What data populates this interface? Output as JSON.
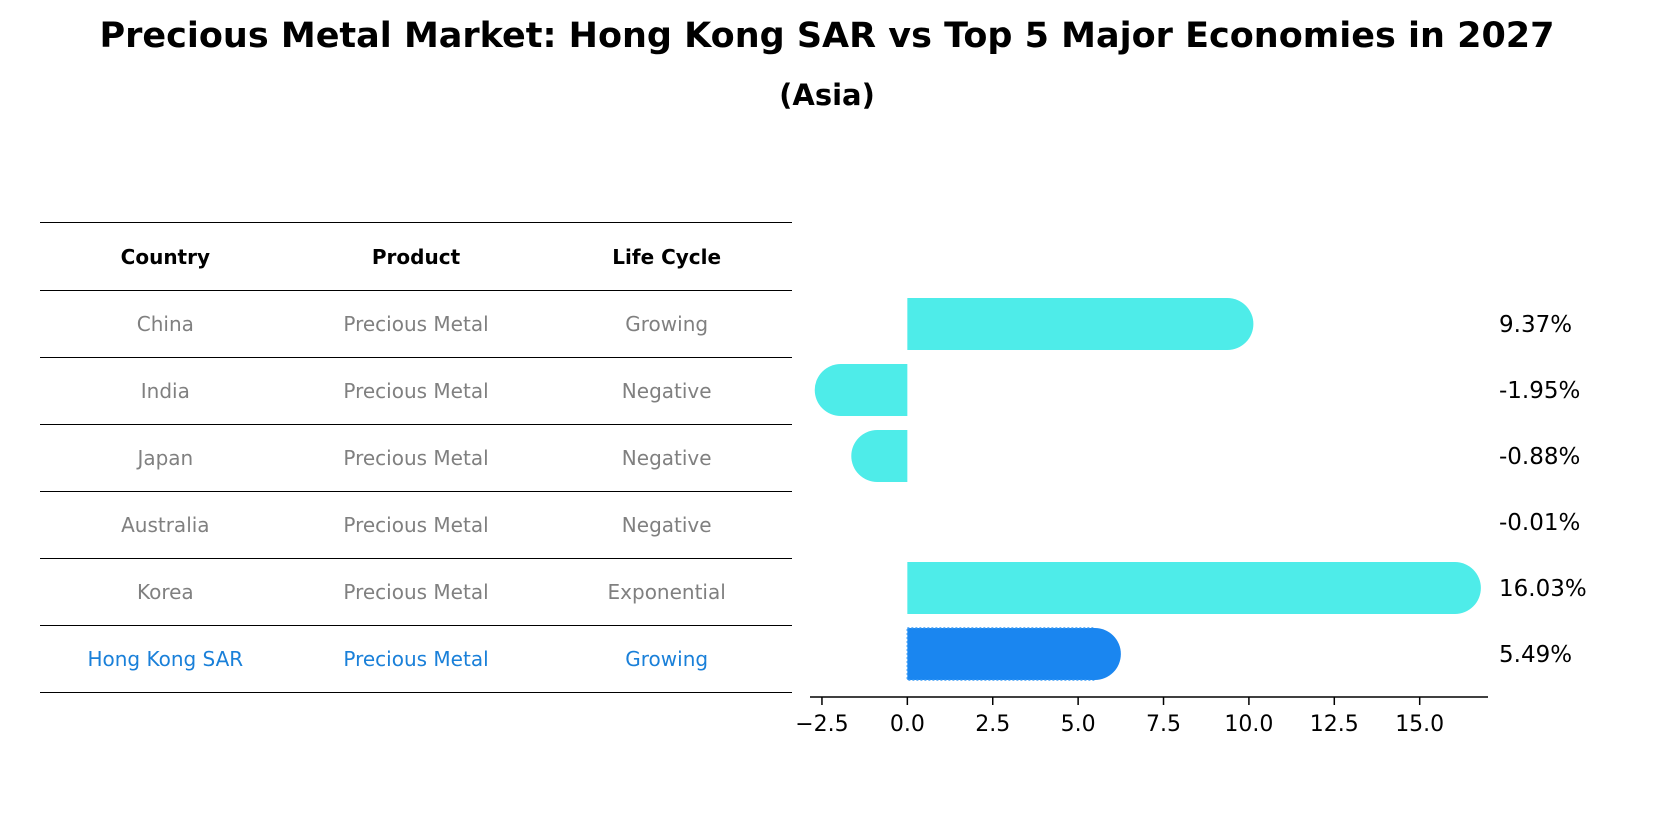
{
  "title": "Precious Metal Market: Hong Kong SAR vs Top 5 Major Economies in 2027",
  "subtitle": "(Asia)",
  "table": {
    "headers": [
      "Country",
      "Product",
      "Life Cycle"
    ],
    "rows": [
      [
        "China",
        "Precious Metal",
        "Growing"
      ],
      [
        "India",
        "Precious Metal",
        "Negative"
      ],
      [
        "Japan",
        "Precious Metal",
        "Negative"
      ],
      [
        "Australia",
        "Precious Metal",
        "Negative"
      ],
      [
        "Korea",
        "Precious Metal",
        "Exponential"
      ],
      [
        "Hong Kong SAR",
        "Precious Metal",
        "Growing"
      ]
    ],
    "highlight_row": 5
  },
  "chart_data": {
    "type": "bar",
    "orientation": "horizontal",
    "categories": [
      "China",
      "India",
      "Japan",
      "Australia",
      "Korea",
      "Hong Kong SAR"
    ],
    "values": [
      9.37,
      -1.95,
      -0.88,
      -0.01,
      16.03,
      5.49
    ],
    "value_labels": [
      "9.37%",
      "-1.95%",
      "-0.88%",
      "-0.01%",
      "16.03%",
      "5.49%"
    ],
    "xlim": [
      -2.85,
      17
    ],
    "xticks": [
      -2.5,
      0.0,
      2.5,
      5.0,
      7.5,
      10.0,
      12.5,
      15.0
    ],
    "xtick_labels": [
      "−2.5",
      "0.0",
      "2.5",
      "5.0",
      "7.5",
      "10.0",
      "12.5",
      "15.0"
    ],
    "highlight_index": 5,
    "colors": {
      "default": "#4eece9",
      "highlight": "#1a86f0"
    }
  }
}
